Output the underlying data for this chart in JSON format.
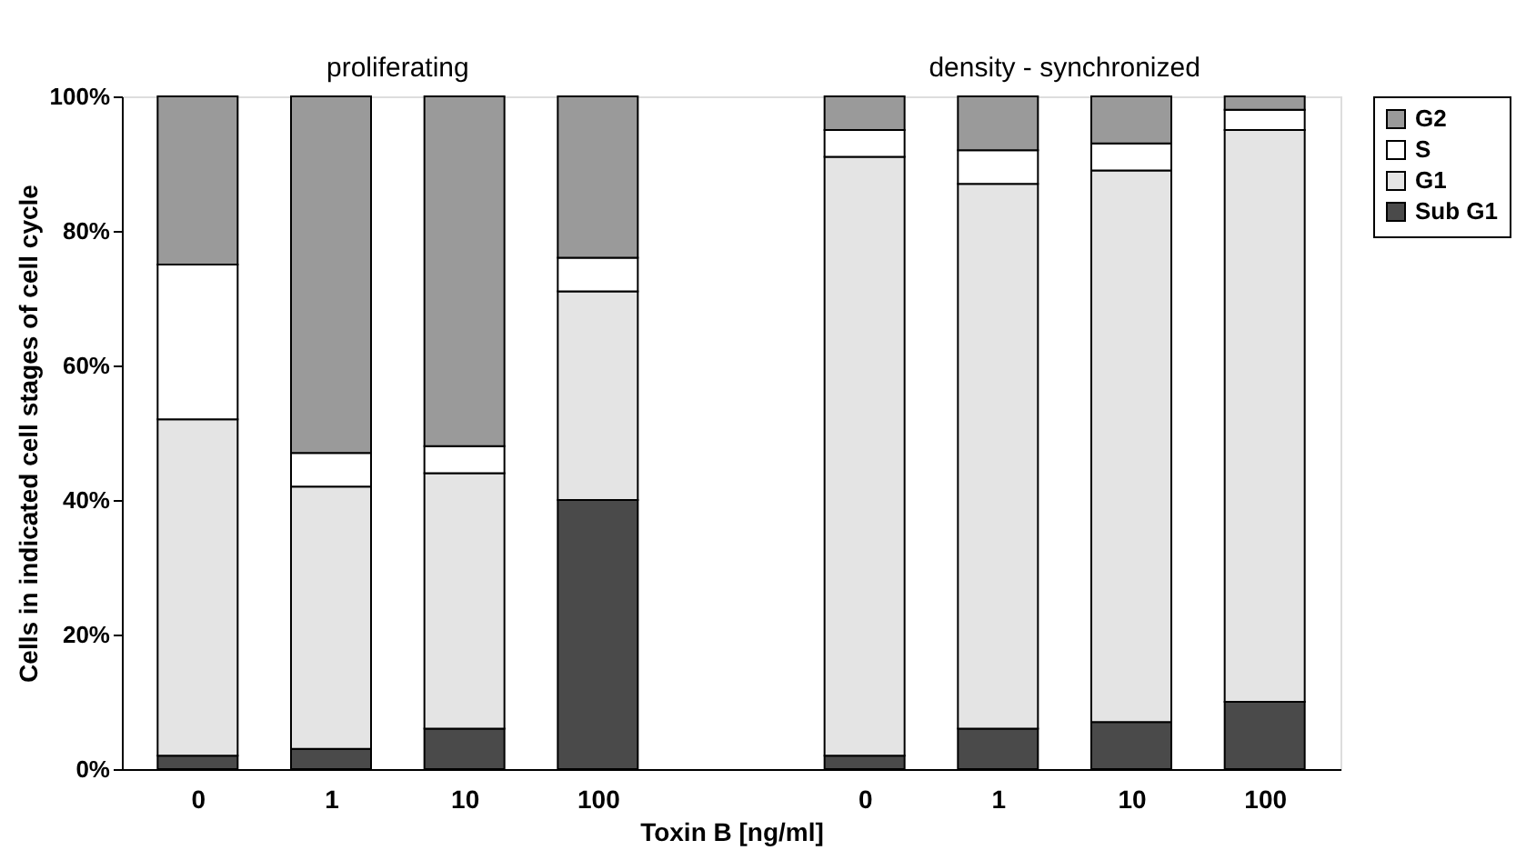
{
  "chart_data": {
    "type": "bar",
    "stacked": true,
    "xlabel": "Toxin B [ng/ml]",
    "ylabel": "Cells in indicated cell stages of cell cycle",
    "annotations": [
      "proliferating",
      "density - synchronized"
    ],
    "categories": [
      "0",
      "1",
      "10",
      "100",
      null,
      "0",
      "1",
      "10",
      "100"
    ],
    "series": [
      {
        "name": "Sub G1",
        "color": "#4a4a4a",
        "values": [
          2,
          3,
          6,
          40,
          null,
          2,
          6,
          7,
          10
        ]
      },
      {
        "name": "G1",
        "color": "#e4e4e4",
        "values": [
          50,
          39,
          38,
          31,
          null,
          89,
          81,
          82,
          85
        ]
      },
      {
        "name": "S",
        "color": "#ffffff",
        "values": [
          23,
          5,
          4,
          5,
          null,
          4,
          5,
          4,
          3
        ]
      },
      {
        "name": "G2",
        "color": "#9a9a9a",
        "values": [
          25,
          53,
          52,
          24,
          null,
          5,
          8,
          7,
          2
        ]
      }
    ],
    "ylim": [
      0,
      100
    ],
    "yticks": [
      {
        "value": 0,
        "label": "0%"
      },
      {
        "value": 20,
        "label": "20%"
      },
      {
        "value": 40,
        "label": "40%"
      },
      {
        "value": 60,
        "label": "60%"
      },
      {
        "value": 80,
        "label": "80%"
      },
      {
        "value": 100,
        "label": "100%"
      }
    ],
    "legend": "right",
    "grid": false
  }
}
